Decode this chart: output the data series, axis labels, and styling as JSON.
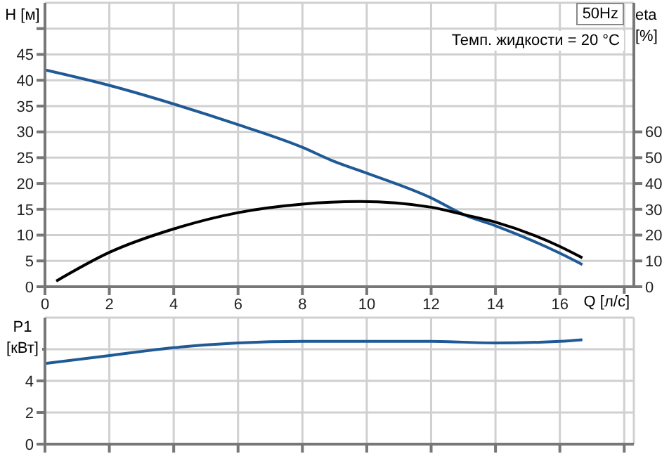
{
  "chart_data": [
    {
      "type": "line",
      "ylabel": "H [м]",
      "y2label": "eta [%]",
      "xlabel": "Q [л/с]",
      "annotations": [
        "50Hz",
        "Темп. жидкости = 20 °C"
      ],
      "grid": true,
      "xlim": [
        0,
        18.3
      ],
      "xticks": [
        0,
        2,
        4,
        6,
        8,
        10,
        12,
        14,
        16,
        {
          "value": 18,
          "label": null
        }
      ],
      "ylim": [
        0,
        55
      ],
      "yticks": [
        0,
        5,
        10,
        15,
        20,
        25,
        30,
        35,
        40,
        45,
        {
          "value": 50,
          "label": null
        }
      ],
      "y2lim": [
        0,
        110
      ],
      "y2ticks": [
        0,
        10,
        20,
        30,
        40,
        50,
        60
      ],
      "series": [
        {
          "color": "#1f5a96",
          "x": [
            0,
            2,
            4,
            6,
            8,
            8.9,
            10,
            12,
            13,
            14,
            16,
            16.7
          ],
          "values": [
            42,
            39,
            35.4,
            31.4,
            27,
            24.5,
            22,
            17.2,
            14,
            11.8,
            6.5,
            4.3
          ]
        },
        {
          "color": "#000000",
          "axis": "y2",
          "x": [
            0.35,
            2,
            4,
            6,
            8,
            9.8,
            12,
            13,
            14,
            16,
            16.7
          ],
          "values": [
            2.2,
            13.3,
            22.4,
            28.7,
            32,
            33,
            30.8,
            28,
            25,
            15.6,
            11.2
          ]
        }
      ]
    },
    {
      "type": "line",
      "ylabel": "P1 [кВт]",
      "grid": true,
      "tick_labels": "y",
      "xlim": [
        0,
        18.3
      ],
      "xticks": [
        0,
        2,
        4,
        6,
        8,
        10,
        12,
        14,
        16,
        18
      ],
      "ylim": [
        0,
        8
      ],
      "yticks": [
        0,
        2,
        4,
        {
          "value": 6,
          "label": null
        }
      ],
      "series": [
        {
          "color": "#1f5a96",
          "x": [
            0,
            2,
            4,
            6,
            8,
            10,
            12,
            14,
            16,
            16.7
          ],
          "values": [
            5.1,
            5.6,
            6.1,
            6.4,
            6.5,
            6.5,
            6.5,
            6.4,
            6.5,
            6.6
          ]
        }
      ]
    }
  ]
}
